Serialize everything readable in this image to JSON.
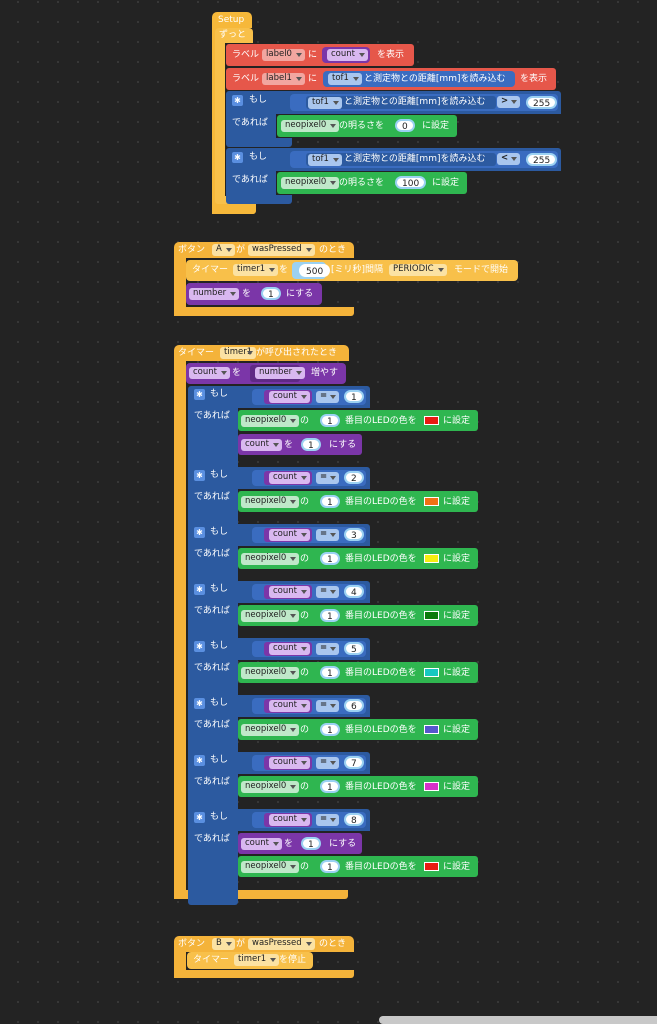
{
  "setup": {
    "hat": "Setup",
    "forever": "ずっと",
    "row1": {
      "prefix": "ラベル",
      "label": "label0",
      "mid": "に",
      "value": "count",
      "suffix": "を表示"
    },
    "row2": {
      "prefix": "ラベル",
      "label": "label1",
      "mid": "に",
      "sensor": "tof1",
      "reading": "と測定物との距離[mm]を読み込む",
      "suffix": "を表示"
    },
    "if1": {
      "if": "もし",
      "then": "であれば",
      "sensor": "tof1",
      "reading": "と測定物との距離[mm]を読み込む",
      "op": ">",
      "value": "255",
      "pixel": "neopixel0",
      "brightness": "の明るさを",
      "bval": "0",
      "set": "に設定"
    },
    "if2": {
      "if": "もし",
      "then": "であれば",
      "sensor": "tof1",
      "reading": "と測定物との距離[mm]を読み込む",
      "op": "<",
      "value": "255",
      "pixel": "neopixel0",
      "brightness": "の明るさを",
      "bval": "100",
      "set": "に設定"
    }
  },
  "buttonA": {
    "prefix": "ボタン",
    "button": "A",
    "ga": "が",
    "event": "wasPressed",
    "when": "のとき",
    "timer": {
      "prefix": "タイマー",
      "name": "timer1",
      "wo": "を",
      "ms": "500",
      "unit": "[ミリ秒]間隔",
      "mode": "PERIODIC",
      "suffix": "モードで開始"
    },
    "setvar": {
      "var": "number",
      "wo": "を",
      "val": "1",
      "suffix": "にする"
    }
  },
  "timerHandler": {
    "hat_prefix": "タイマー",
    "timer": "timer1",
    "hat_suffix": "が呼び出されたとき",
    "inc": {
      "var": "count",
      "wo": "を",
      "by": "number",
      "suffix": "増やす"
    },
    "if_label": "もし",
    "then_label": "であれば",
    "var": "count",
    "op": "=",
    "pixel": "neopixel0",
    "no": "の",
    "idx": "1",
    "led_text": "番目のLEDの色を",
    "set": "に設定",
    "reset": {
      "var": "count",
      "wo": "を",
      "val": "1",
      "suffix": "にする"
    },
    "branches": [
      {
        "n": "1",
        "color": "#e81b12"
      },
      {
        "n": "2",
        "color": "#f07014"
      },
      {
        "n": "3",
        "color": "#f5ee10"
      },
      {
        "n": "4",
        "color": "#0b7a0b"
      },
      {
        "n": "5",
        "color": "#16c8c0"
      },
      {
        "n": "6",
        "color": "#5656cc"
      },
      {
        "n": "7",
        "color": "#d630c8"
      },
      {
        "n": "8",
        "color": "#e81b12"
      }
    ]
  },
  "buttonB": {
    "prefix": "ボタン",
    "button": "B",
    "ga": "が",
    "event": "wasPressed",
    "when": "のとき",
    "stop": {
      "prefix": "タイマー",
      "name": "timer1",
      "suffix": "を停止"
    }
  }
}
